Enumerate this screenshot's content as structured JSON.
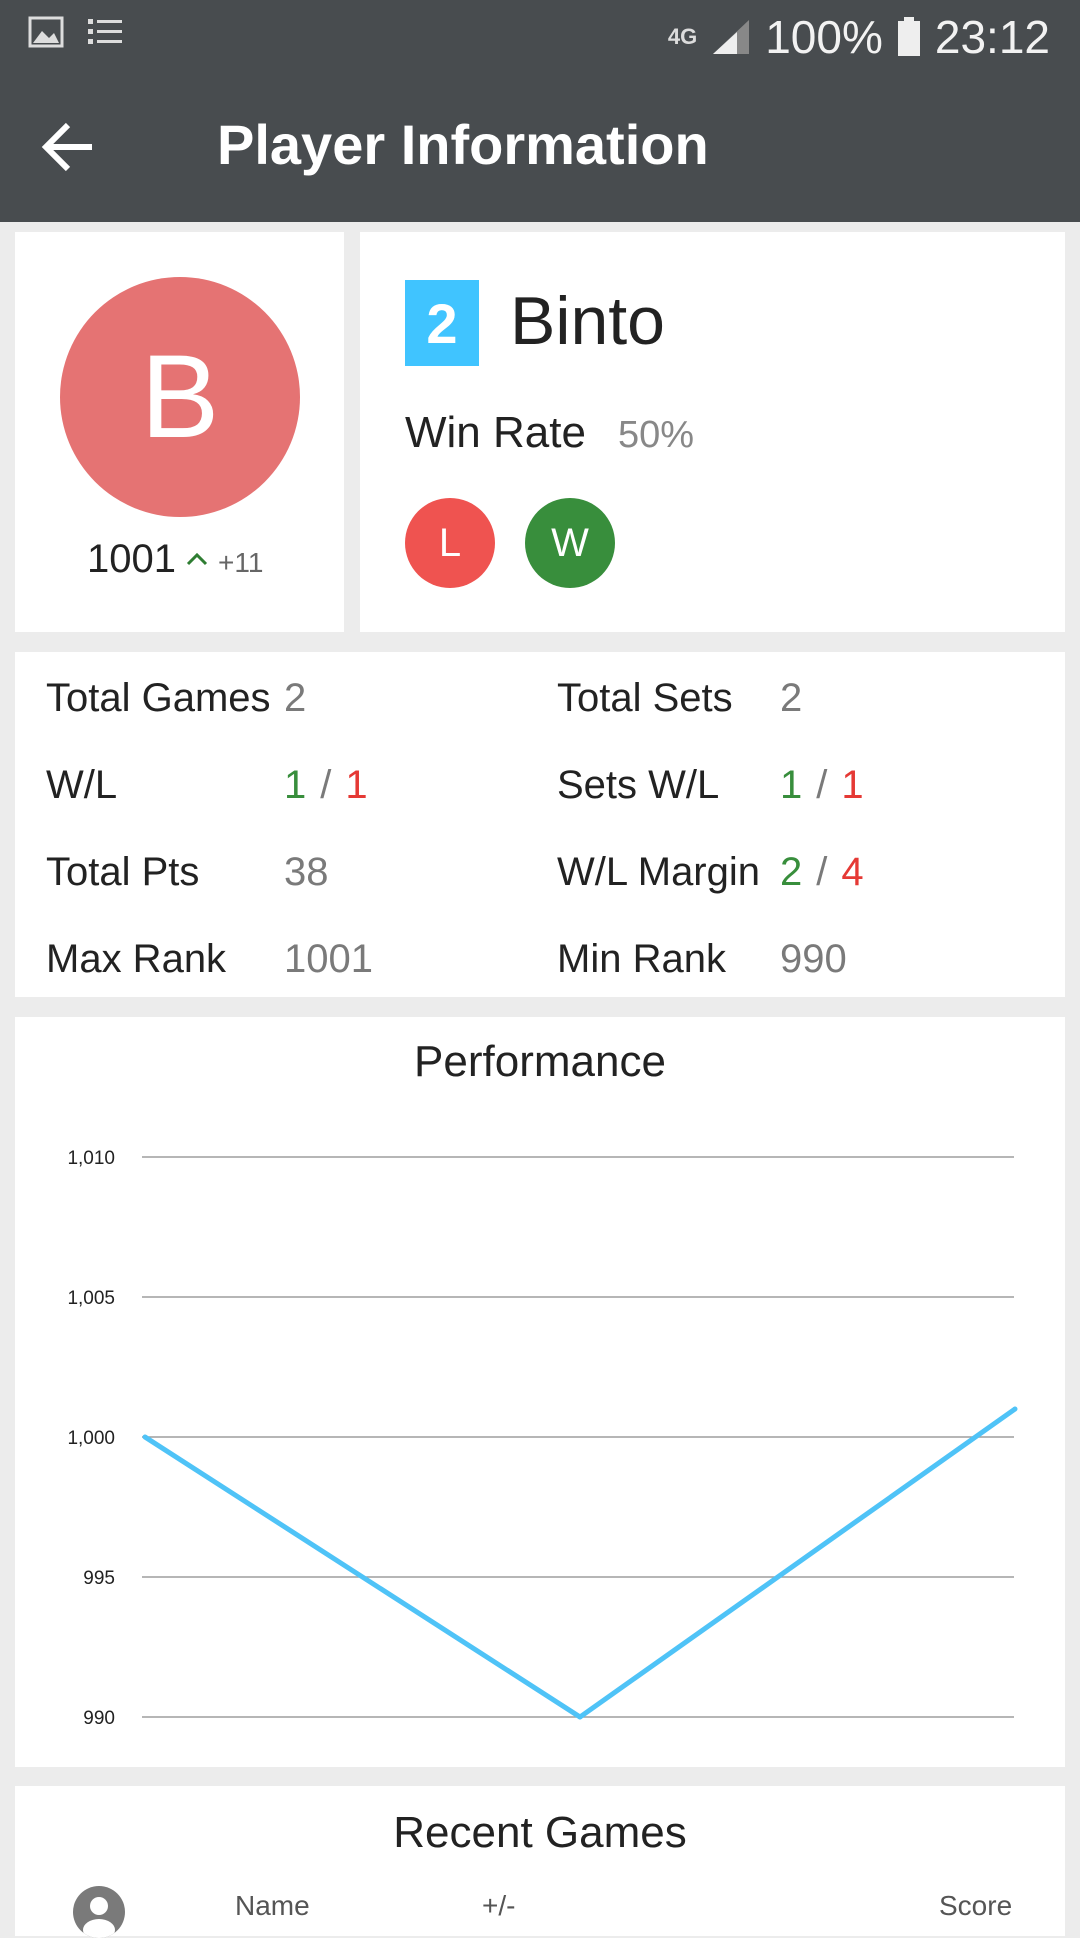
{
  "status_bar": {
    "network": "4G",
    "battery": "100%",
    "time": "23:12",
    "icons": [
      "image-icon",
      "list-icon",
      "network-icon",
      "signal-icon",
      "battery-icon"
    ]
  },
  "app_bar": {
    "title": "Player Information",
    "back_icon": "arrow-left-icon"
  },
  "player": {
    "avatar_letter": "B",
    "rank": "1001",
    "rank_delta": "+11",
    "position": "2",
    "name": "Binto",
    "win_rate_label": "Win Rate",
    "win_rate": "50%",
    "recent_results": [
      "L",
      "W"
    ]
  },
  "stats": {
    "total_games": {
      "label": "Total Games",
      "value": "2"
    },
    "wl": {
      "label": "W/L",
      "wins": "1",
      "sep": "/",
      "losses": "1"
    },
    "total_pts": {
      "label": "Total Pts",
      "value": "38"
    },
    "max_rank": {
      "label": "Max Rank",
      "value": "1001"
    },
    "total_sets": {
      "label": "Total Sets",
      "value": "2"
    },
    "sets_wl": {
      "label": "Sets W/L",
      "wins": "1",
      "sep": "/",
      "losses": "1"
    },
    "wl_margin": {
      "label": "W/L Margin",
      "wins": "2",
      "sep": "/",
      "losses": "4"
    },
    "min_rank": {
      "label": "Min Rank",
      "value": "990"
    }
  },
  "performance": {
    "title": "Performance"
  },
  "chart_data": {
    "type": "line",
    "title": "Performance",
    "x": [
      0,
      1,
      2
    ],
    "series": [
      {
        "values": [
          1000,
          990,
          1001
        ]
      }
    ],
    "ylim": [
      990,
      1010
    ],
    "y_ticks": [
      990,
      995,
      1000,
      1005,
      1010
    ],
    "y_tick_labels": [
      "990",
      "995",
      "1,000",
      "1,005",
      "1,010"
    ],
    "grid": true,
    "line_color": "#4fc3f7"
  },
  "recent_games": {
    "title": "Recent Games",
    "columns": [
      "Name",
      "+/-",
      "Score"
    ]
  },
  "colors": {
    "bar": "#484c4f",
    "avatar": "#e57373",
    "rank_badge": "#40c4ff",
    "loss": "#ef5350",
    "win": "#388e3c"
  }
}
